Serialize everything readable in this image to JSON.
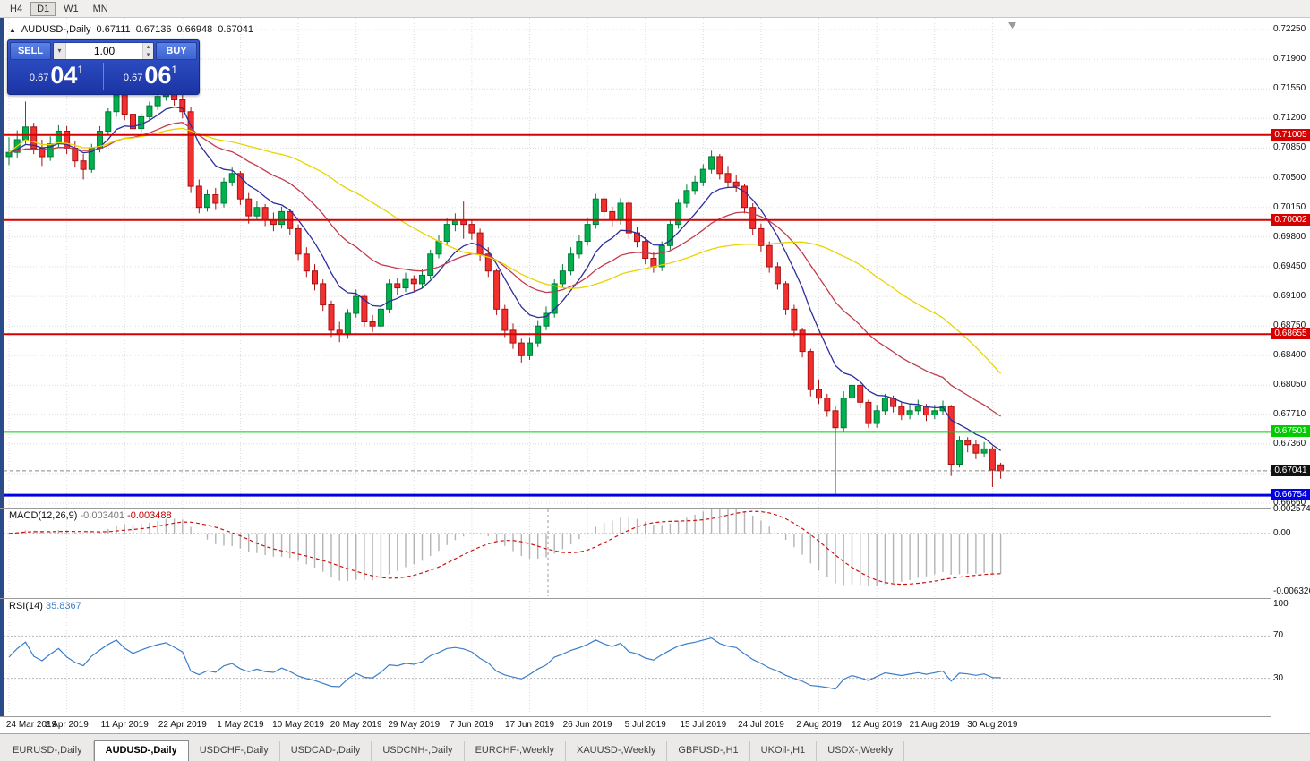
{
  "toolbar": {
    "timeframes": [
      {
        "label": "H4",
        "active": false
      },
      {
        "label": "D1",
        "active": true
      },
      {
        "label": "W1",
        "active": false
      },
      {
        "label": "MN",
        "active": false
      }
    ]
  },
  "chart": {
    "title": "AUDUSD-,Daily",
    "open": "0.67111",
    "high": "0.67136",
    "low": "0.66948",
    "close": "0.67041"
  },
  "trade_panel": {
    "sell_label": "SELL",
    "buy_label": "BUY",
    "volume": "1.00",
    "sell_price": {
      "small": "0.67",
      "big": "04",
      "sup": "1"
    },
    "buy_price": {
      "small": "0.67",
      "big": "06",
      "sup": "1"
    }
  },
  "price_scale": {
    "max": 0.72387,
    "min": 0.66607
  },
  "price_axis": {
    "labels": [
      "0.72250",
      "0.71900",
      "0.71550",
      "0.71200",
      "0.70850",
      "0.70500",
      "0.70150",
      "0.69800",
      "0.69450",
      "0.69100",
      "0.68750",
      "0.68400",
      "0.68050",
      "0.67710",
      "0.67360",
      "0.67010",
      "0.66660"
    ]
  },
  "hlines": [
    {
      "price": 0.71005,
      "label": "0.71005",
      "color": "#d60000",
      "width": 2
    },
    {
      "price": 0.70002,
      "label": "0.70002",
      "color": "#d60000",
      "width": 2
    },
    {
      "price": 0.68655,
      "label": "0.68655",
      "color": "#d60000",
      "width": 2
    },
    {
      "price": 0.67501,
      "label": "0.67501",
      "color": "#00cc00",
      "width": 2
    },
    {
      "price": 0.66754,
      "label": "0.66754",
      "color": "#0000e0",
      "width": 3
    }
  ],
  "current_price": {
    "price": 0.67041,
    "label": "0.67041",
    "color": "#111111"
  },
  "colors": {
    "candle_up": "#00b14f",
    "candle_up_border": "#007a35",
    "candle_down": "#f23030",
    "candle_down_border": "#a81111",
    "grid": "#dcdcdc"
  },
  "chart_data": {
    "type": "candlestick",
    "symbol": "AUDUSD-",
    "timeframe": "Daily",
    "bar_spacing": 9.23,
    "bars_per_label": 7,
    "x_labels": [
      "24 Mar 2019",
      "2 Apr 2019",
      "11 Apr 2019",
      "22 Apr 2019",
      "1 May 2019",
      "10 May 2019",
      "20 May 2019",
      "29 May 2019",
      "7 Jun 2019",
      "17 Jun 2019",
      "26 Jun 2019",
      "5 Jul 2019",
      "15 Jul 2019",
      "24 Jul 2019",
      "2 Aug 2019",
      "12 Aug 2019",
      "21 Aug 2019",
      "30 Aug 2019"
    ],
    "ma": [
      {
        "period": 8,
        "type": "ema",
        "color": "#2d2d9e"
      },
      {
        "period": 21,
        "type": "ema",
        "color": "#c23b4b"
      },
      {
        "period": 34,
        "type": "sma",
        "color": "#e8d400"
      }
    ],
    "candles": [
      [
        0.7075,
        0.7098,
        0.7065,
        0.708
      ],
      [
        0.708,
        0.7106,
        0.7074,
        0.7095
      ],
      [
        0.7095,
        0.714,
        0.709,
        0.711
      ],
      [
        0.711,
        0.7115,
        0.7078,
        0.7085
      ],
      [
        0.7085,
        0.7095,
        0.7064,
        0.7075
      ],
      [
        0.7075,
        0.7099,
        0.707,
        0.709
      ],
      [
        0.709,
        0.7112,
        0.7085,
        0.7105
      ],
      [
        0.7105,
        0.7111,
        0.7078,
        0.7085
      ],
      [
        0.7085,
        0.7093,
        0.7062,
        0.707
      ],
      [
        0.707,
        0.7078,
        0.7048,
        0.706
      ],
      [
        0.706,
        0.709,
        0.7056,
        0.7085
      ],
      [
        0.7085,
        0.7111,
        0.708,
        0.7105
      ],
      [
        0.7105,
        0.7132,
        0.71,
        0.7128
      ],
      [
        0.7128,
        0.7155,
        0.7122,
        0.7148
      ],
      [
        0.7148,
        0.7152,
        0.7118,
        0.7125
      ],
      [
        0.7125,
        0.713,
        0.71,
        0.7108
      ],
      [
        0.7108,
        0.7126,
        0.7103,
        0.7122
      ],
      [
        0.7122,
        0.714,
        0.7117,
        0.7135
      ],
      [
        0.7135,
        0.7152,
        0.713,
        0.7146
      ],
      [
        0.7146,
        0.716,
        0.7141,
        0.7155
      ],
      [
        0.7155,
        0.7159,
        0.7135,
        0.7142
      ],
      [
        0.7142,
        0.7148,
        0.712,
        0.7128
      ],
      [
        0.7128,
        0.7133,
        0.7032,
        0.704
      ],
      [
        0.704,
        0.7048,
        0.7008,
        0.7015
      ],
      [
        0.7015,
        0.7036,
        0.701,
        0.703
      ],
      [
        0.703,
        0.7038,
        0.7012,
        0.702
      ],
      [
        0.702,
        0.705,
        0.7015,
        0.7045
      ],
      [
        0.7045,
        0.7062,
        0.704,
        0.7055
      ],
      [
        0.7055,
        0.7058,
        0.7018,
        0.7025
      ],
      [
        0.7025,
        0.7032,
        0.6996,
        0.7005
      ],
      [
        0.7005,
        0.7023,
        0.7,
        0.7015
      ],
      [
        0.7015,
        0.7019,
        0.6993,
        0.7
      ],
      [
        0.7,
        0.7009,
        0.6987,
        0.6995
      ],
      [
        0.6995,
        0.7016,
        0.699,
        0.701
      ],
      [
        0.701,
        0.7013,
        0.6983,
        0.699
      ],
      [
        0.699,
        0.6995,
        0.6953,
        0.696
      ],
      [
        0.696,
        0.6968,
        0.6933,
        0.694
      ],
      [
        0.694,
        0.6948,
        0.6917,
        0.6925
      ],
      [
        0.6925,
        0.693,
        0.6893,
        0.69
      ],
      [
        0.69,
        0.6905,
        0.6862,
        0.687
      ],
      [
        0.687,
        0.688,
        0.6856,
        0.6865
      ],
      [
        0.6865,
        0.6895,
        0.686,
        0.689
      ],
      [
        0.689,
        0.6918,
        0.6885,
        0.691
      ],
      [
        0.691,
        0.6913,
        0.6874,
        0.688
      ],
      [
        0.688,
        0.6888,
        0.6868,
        0.6875
      ],
      [
        0.6875,
        0.69,
        0.687,
        0.6895
      ],
      [
        0.6895,
        0.693,
        0.689,
        0.6925
      ],
      [
        0.6925,
        0.6932,
        0.6912,
        0.692
      ],
      [
        0.692,
        0.6938,
        0.6915,
        0.693
      ],
      [
        0.693,
        0.6935,
        0.6916,
        0.6925
      ],
      [
        0.6925,
        0.6942,
        0.692,
        0.6935
      ],
      [
        0.6935,
        0.6965,
        0.693,
        0.696
      ],
      [
        0.696,
        0.6982,
        0.6955,
        0.6975
      ],
      [
        0.6975,
        0.7002,
        0.697,
        0.6995
      ],
      [
        0.6995,
        0.7008,
        0.6987,
        0.7
      ],
      [
        0.7,
        0.7022,
        0.6978,
        0.6995
      ],
      [
        0.6995,
        0.7,
        0.6977,
        0.6985
      ],
      [
        0.6985,
        0.699,
        0.6952,
        0.696
      ],
      [
        0.696,
        0.6968,
        0.6933,
        0.694
      ],
      [
        0.694,
        0.6943,
        0.6888,
        0.6895
      ],
      [
        0.6895,
        0.69,
        0.6862,
        0.687
      ],
      [
        0.687,
        0.6878,
        0.6848,
        0.6855
      ],
      [
        0.6855,
        0.686,
        0.6832,
        0.684
      ],
      [
        0.684,
        0.6862,
        0.6835,
        0.6855
      ],
      [
        0.6855,
        0.6882,
        0.685,
        0.6875
      ],
      [
        0.6875,
        0.6898,
        0.687,
        0.689
      ],
      [
        0.689,
        0.693,
        0.6885,
        0.6925
      ],
      [
        0.6925,
        0.6948,
        0.692,
        0.694
      ],
      [
        0.694,
        0.6968,
        0.6935,
        0.696
      ],
      [
        0.696,
        0.6983,
        0.6955,
        0.6975
      ],
      [
        0.6975,
        0.7002,
        0.697,
        0.6995
      ],
      [
        0.6995,
        0.7031,
        0.699,
        0.7025
      ],
      [
        0.7025,
        0.7029,
        0.7002,
        0.701
      ],
      [
        0.701,
        0.7016,
        0.6992,
        0.7
      ],
      [
        0.7,
        0.7026,
        0.6995,
        0.702
      ],
      [
        0.702,
        0.7023,
        0.6978,
        0.6985
      ],
      [
        0.6985,
        0.6992,
        0.6968,
        0.6975
      ],
      [
        0.6975,
        0.698,
        0.6948,
        0.6955
      ],
      [
        0.6955,
        0.6962,
        0.6938,
        0.6945
      ],
      [
        0.6945,
        0.6975,
        0.694,
        0.697
      ],
      [
        0.697,
        0.7,
        0.6965,
        0.6995
      ],
      [
        0.6995,
        0.7025,
        0.699,
        0.702
      ],
      [
        0.702,
        0.7042,
        0.7015,
        0.7035
      ],
      [
        0.7035,
        0.7052,
        0.703,
        0.7045
      ],
      [
        0.7045,
        0.7066,
        0.704,
        0.706
      ],
      [
        0.706,
        0.7082,
        0.7055,
        0.7075
      ],
      [
        0.7075,
        0.7078,
        0.7048,
        0.7055
      ],
      [
        0.7055,
        0.7064,
        0.7038,
        0.7045
      ],
      [
        0.7045,
        0.7053,
        0.7033,
        0.704
      ],
      [
        0.704,
        0.7043,
        0.7008,
        0.7015
      ],
      [
        0.7015,
        0.702,
        0.6983,
        0.699
      ],
      [
        0.699,
        0.6996,
        0.6963,
        0.697
      ],
      [
        0.697,
        0.6975,
        0.6938,
        0.6945
      ],
      [
        0.6945,
        0.695,
        0.6918,
        0.6925
      ],
      [
        0.6925,
        0.6928,
        0.6888,
        0.6895
      ],
      [
        0.6895,
        0.69,
        0.6863,
        0.687
      ],
      [
        0.687,
        0.6873,
        0.6838,
        0.6845
      ],
      [
        0.6845,
        0.6848,
        0.6792,
        0.68
      ],
      [
        0.68,
        0.6812,
        0.6783,
        0.679
      ],
      [
        0.679,
        0.6795,
        0.6768,
        0.6775
      ],
      [
        0.6775,
        0.678,
        0.6677,
        0.6755
      ],
      [
        0.6755,
        0.6798,
        0.675,
        0.679
      ],
      [
        0.679,
        0.681,
        0.6785,
        0.6805
      ],
      [
        0.6805,
        0.6808,
        0.6778,
        0.6785
      ],
      [
        0.6785,
        0.6788,
        0.6755,
        0.676
      ],
      [
        0.676,
        0.6782,
        0.6755,
        0.6775
      ],
      [
        0.6775,
        0.6795,
        0.677,
        0.679
      ],
      [
        0.679,
        0.6793,
        0.6773,
        0.678
      ],
      [
        0.678,
        0.6785,
        0.6764,
        0.677
      ],
      [
        0.677,
        0.6783,
        0.6765,
        0.6775
      ],
      [
        0.6775,
        0.6788,
        0.677,
        0.678
      ],
      [
        0.678,
        0.6783,
        0.6763,
        0.677
      ],
      [
        0.677,
        0.6782,
        0.6765,
        0.6775
      ],
      [
        0.6775,
        0.6787,
        0.677,
        0.678
      ],
      [
        0.678,
        0.6782,
        0.6698,
        0.6712
      ],
      [
        0.6712,
        0.6745,
        0.6708,
        0.674
      ],
      [
        0.674,
        0.6744,
        0.6726,
        0.6735
      ],
      [
        0.6735,
        0.674,
        0.6718,
        0.6725
      ],
      [
        0.6725,
        0.6738,
        0.672,
        0.673
      ],
      [
        0.673,
        0.6733,
        0.6685,
        0.6705
      ],
      [
        0.67111,
        0.67136,
        0.66948,
        0.67041
      ]
    ]
  },
  "macd": {
    "label": "MACD(12,26,9)",
    "value1": "-0.003401",
    "value2": "-0.003488",
    "fast": 12,
    "slow": 26,
    "signal": 9,
    "hist_color": "#b4b4b4",
    "signal_color": "#cc1111",
    "scale": {
      "max": 0.0028,
      "min": -0.007
    },
    "axis": [
      {
        "v": 0.002574,
        "t": "0.0025740"
      },
      {
        "v": 0,
        "t": "0.00"
      },
      {
        "v": -0.006326,
        "t": "-0.0063260"
      }
    ]
  },
  "rsi": {
    "label": "RSI(14)",
    "value": "35.8367",
    "period": 14,
    "color": "#3c7ec8",
    "levels": [
      70,
      30
    ],
    "scale": {
      "max": 106,
      "min": -6
    },
    "axis": [
      {
        "v": 100,
        "t": "100"
      },
      {
        "v": 70,
        "t": "70"
      },
      {
        "v": 30,
        "t": "30"
      }
    ]
  },
  "tabs": {
    "items": [
      {
        "label": "EURUSD-,Daily",
        "active": false
      },
      {
        "label": "AUDUSD-,Daily",
        "active": true
      },
      {
        "label": "USDCHF-,Daily",
        "active": false
      },
      {
        "label": "USDCAD-,Daily",
        "active": false
      },
      {
        "label": "USDCNH-,Daily",
        "active": false
      },
      {
        "label": "EURCHF-,Weekly",
        "active": false
      },
      {
        "label": "XAUUSD-,Weekly",
        "active": false
      },
      {
        "label": "GBPUSD-,H1",
        "active": false
      },
      {
        "label": "UKOil-,H1",
        "active": false
      },
      {
        "label": "USDX-,Weekly",
        "active": false
      }
    ]
  }
}
